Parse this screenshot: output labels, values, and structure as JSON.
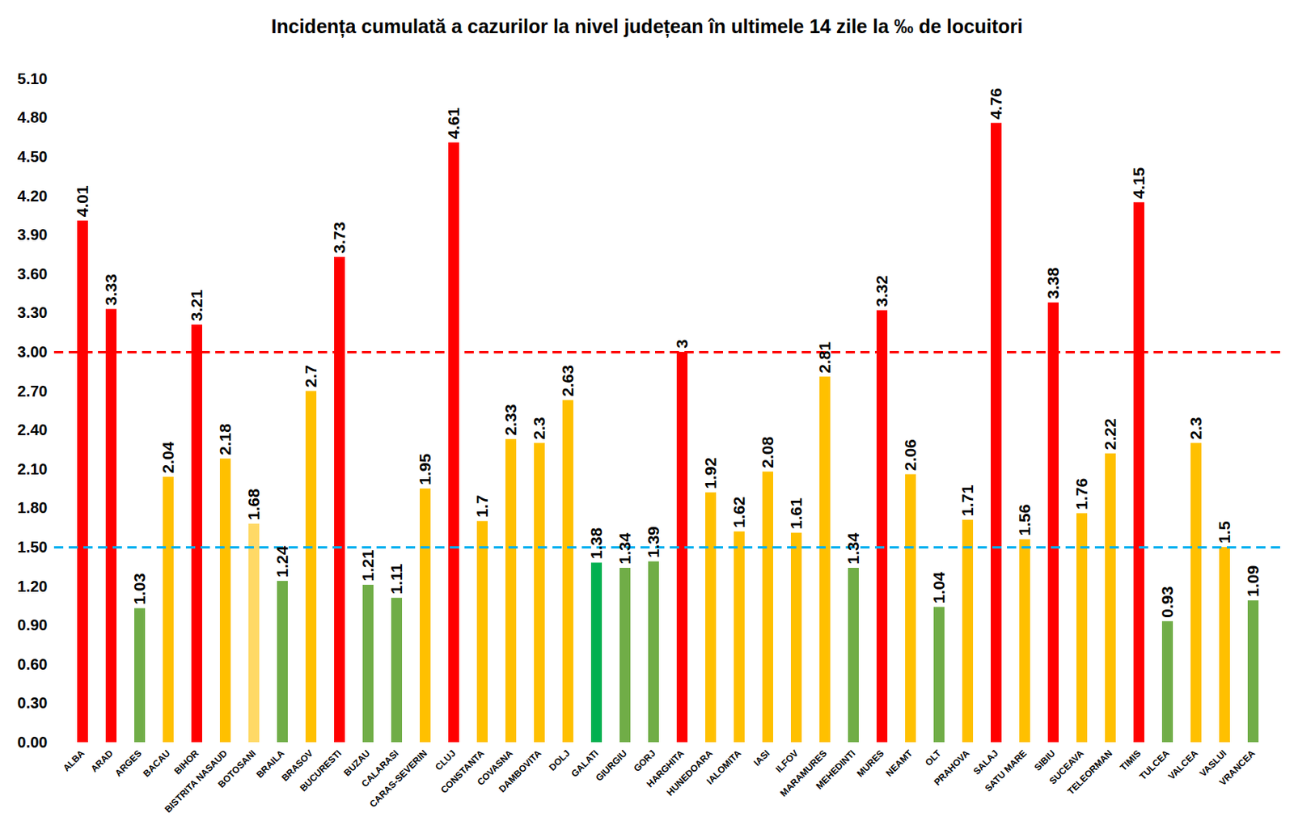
{
  "chart_data": {
    "type": "bar",
    "title": "Incidența cumulată a cazurilor la nivel județean în ultimele 14 zile la ‰ de locuitori",
    "categories": [
      "ALBA",
      "ARAD",
      "ARGES",
      "BACAU",
      "BIHOR",
      "BISTRITA NASAUD",
      "BOTOSANI",
      "BRAILA",
      "BRASOV",
      "BUCURESTI",
      "BUZAU",
      "CALARASI",
      "CARAS-SEVERIN",
      "CLUJ",
      "CONSTANTA",
      "COVASNA",
      "DAMBOVITA",
      "DOLJ",
      "GALATI",
      "GIURGIU",
      "GORJ",
      "HARGHITA",
      "HUNEDOARA",
      "IALOMITA",
      "IASI",
      "ILFOV",
      "MARAMURES",
      "MEHEDINTI",
      "MURES",
      "NEAMT",
      "OLT",
      "PRAHOVA",
      "SALAJ",
      "SATU MARE",
      "SIBIU",
      "SUCEAVA",
      "TELEORMAN",
      "TIMIS",
      "TULCEA",
      "VALCEA",
      "VASLUI",
      "VRANCEA"
    ],
    "values": [
      4.01,
      3.33,
      1.03,
      2.04,
      3.21,
      2.18,
      1.68,
      1.24,
      2.7,
      3.73,
      1.21,
      1.11,
      1.95,
      4.61,
      1.7,
      2.33,
      2.3,
      2.63,
      1.38,
      1.34,
      1.39,
      3,
      1.92,
      1.62,
      2.08,
      1.61,
      2.81,
      1.34,
      3.32,
      2.06,
      1.04,
      1.71,
      4.76,
      1.56,
      3.38,
      1.76,
      2.22,
      4.15,
      0.93,
      2.3,
      1.5,
      1.09
    ],
    "colors": [
      "#ff0000",
      "#ff0000",
      "#70ad47",
      "#ffc000",
      "#ff0000",
      "#ffc000",
      "#ffd966",
      "#70ad47",
      "#ffc000",
      "#ff0000",
      "#70ad47",
      "#70ad47",
      "#ffc000",
      "#ff0000",
      "#ffc000",
      "#ffc000",
      "#ffc000",
      "#ffc000",
      "#00b050",
      "#70ad47",
      "#70ad47",
      "#ff0000",
      "#ffc000",
      "#ffc000",
      "#ffc000",
      "#ffc000",
      "#ffc000",
      "#70ad47",
      "#ff0000",
      "#ffc000",
      "#70ad47",
      "#ffc000",
      "#ff0000",
      "#ffc000",
      "#ff0000",
      "#ffc000",
      "#ffc000",
      "#ff0000",
      "#70ad47",
      "#ffc000",
      "#ffc000",
      "#70ad47"
    ],
    "reference_lines": [
      {
        "value": 3,
        "color": "#ff0000"
      },
      {
        "value": 1.5,
        "color": "#00b0f0"
      }
    ],
    "ylim": [
      0,
      5.1
    ],
    "yticks": [
      {
        "value": 0,
        "label": "0.00"
      },
      {
        "value": 0.3,
        "label": "0.30"
      },
      {
        "value": 0.6,
        "label": "0.60"
      },
      {
        "value": 0.9,
        "label": "0.90"
      },
      {
        "value": 1.2,
        "label": "1.20"
      },
      {
        "value": 1.5,
        "label": "1.50"
      },
      {
        "value": 1.8,
        "label": "1.80"
      },
      {
        "value": 2.1,
        "label": "2.10"
      },
      {
        "value": 2.4,
        "label": "2.40"
      },
      {
        "value": 2.7,
        "label": "2.70"
      },
      {
        "value": 3,
        "label": "3.00"
      },
      {
        "value": 3.3,
        "label": "3.30"
      },
      {
        "value": 3.6,
        "label": "3.60"
      },
      {
        "value": 3.9,
        "label": "3.90"
      },
      {
        "value": 4.2,
        "label": "4.20"
      },
      {
        "value": 4.5,
        "label": "4.50"
      },
      {
        "value": 4.8,
        "label": "4.80"
      },
      {
        "value": 5.1,
        "label": "5.10"
      }
    ],
    "grid": false,
    "data_labels": true
  }
}
